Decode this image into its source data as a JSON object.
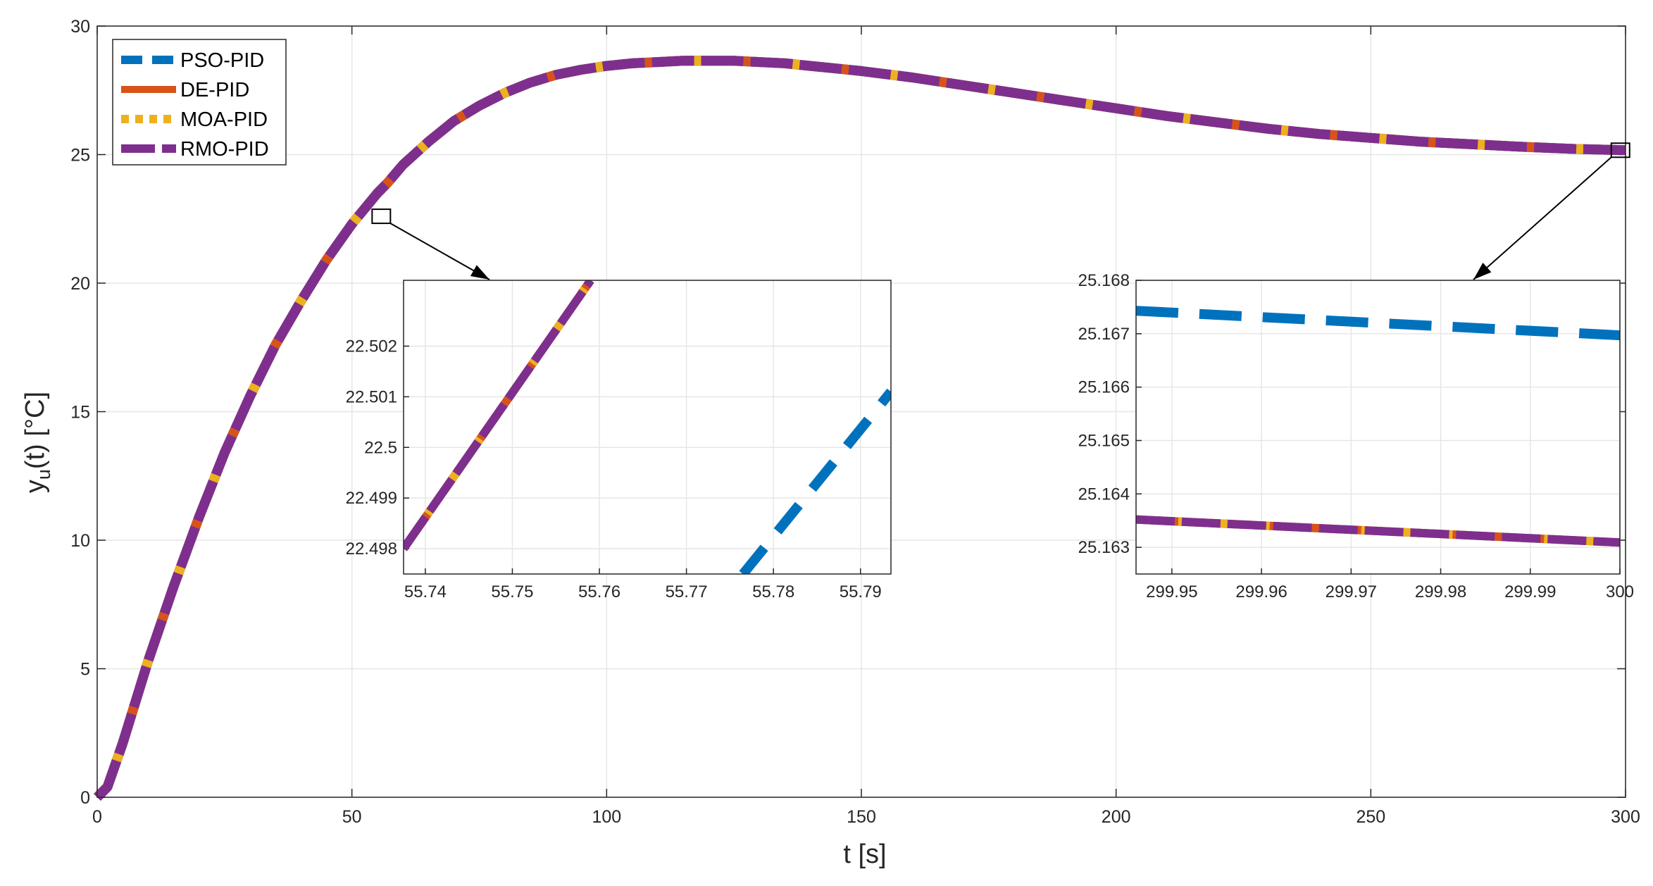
{
  "chart_data": {
    "type": "line",
    "xlabel": "t [s]",
    "ylabel_main": "y",
    "ylabel_sub": "u",
    "ylabel_rest": "(t) [°C]",
    "xlim": [
      0,
      300
    ],
    "ylim": [
      0,
      30
    ],
    "xticks": [
      "0",
      "50",
      "100",
      "150",
      "200",
      "250",
      "300"
    ],
    "yticks": [
      "0",
      "5",
      "10",
      "15",
      "20",
      "25",
      "30"
    ],
    "grid": true,
    "legend_position": "top-left",
    "series": [
      {
        "name": "PSO-PID",
        "color": "#0072BD",
        "style": "dashed"
      },
      {
        "name": "DE-PID",
        "color": "#D95319",
        "style": "solid"
      },
      {
        "name": "MOA-PID",
        "color": "#EDB120",
        "style": "dotted"
      },
      {
        "name": "RMO-PID",
        "color": "#7E2F8E",
        "style": "dash-dot"
      }
    ],
    "response_curve": {
      "t": [
        0,
        2,
        5,
        10,
        15,
        20,
        25,
        30,
        35,
        40,
        45,
        50,
        55,
        57,
        60,
        65,
        70,
        75,
        80,
        85,
        90,
        95,
        100,
        105,
        110,
        115,
        120,
        125,
        130,
        135,
        140,
        145,
        150,
        160,
        170,
        180,
        190,
        200,
        210,
        220,
        230,
        240,
        250,
        260,
        270,
        280,
        290,
        300
      ],
      "y": [
        0,
        0.4,
        2.1,
        5.3,
        8.2,
        10.9,
        13.4,
        15.6,
        17.6,
        19.3,
        20.9,
        22.3,
        23.5,
        23.9,
        24.6,
        25.5,
        26.3,
        26.9,
        27.4,
        27.8,
        28.1,
        28.3,
        28.45,
        28.55,
        28.6,
        28.65,
        28.65,
        28.65,
        28.6,
        28.55,
        28.45,
        28.35,
        28.25,
        28.0,
        27.7,
        27.4,
        27.1,
        26.8,
        26.5,
        26.25,
        26.0,
        25.8,
        25.65,
        25.5,
        25.4,
        25.3,
        25.22,
        25.17
      ]
    },
    "zoom_markers": [
      {
        "t": 55.76,
        "y": 22.6
      },
      {
        "t": 299.0,
        "y": 25.17
      }
    ],
    "inset_left": {
      "xlim": [
        55.7375,
        55.7935
      ],
      "ylim": [
        22.4975,
        22.5033
      ],
      "xticks": [
        "55.74",
        "55.75",
        "55.76",
        "55.77",
        "55.78",
        "55.79"
      ],
      "yticks": [
        "22.498",
        "22.499",
        "22.5",
        "22.501",
        "22.502"
      ],
      "rmo_segment": {
        "x": [
          55.7375,
          55.759
        ],
        "y": [
          22.498,
          22.5033
        ]
      },
      "pso_segment": {
        "x": [
          55.7765,
          55.7935
        ],
        "y": [
          22.4975,
          22.5011
        ]
      }
    },
    "inset_right": {
      "xlim": [
        299.946,
        300.0
      ],
      "ylim": [
        25.1625,
        25.168
      ],
      "xticks": [
        "299.95",
        "299.96",
        "299.97",
        "299.98",
        "299.99",
        "300"
      ],
      "yticks": [
        "25.163",
        "25.164",
        "25.165",
        "25.166",
        "25.167",
        "25.168"
      ],
      "pso_segment": {
        "x": [
          299.946,
          300.0
        ],
        "y": [
          25.16743,
          25.16697
        ]
      },
      "rmo_segment": {
        "x": [
          299.946,
          300.0
        ],
        "y": [
          25.16352,
          25.16309
        ]
      }
    }
  }
}
